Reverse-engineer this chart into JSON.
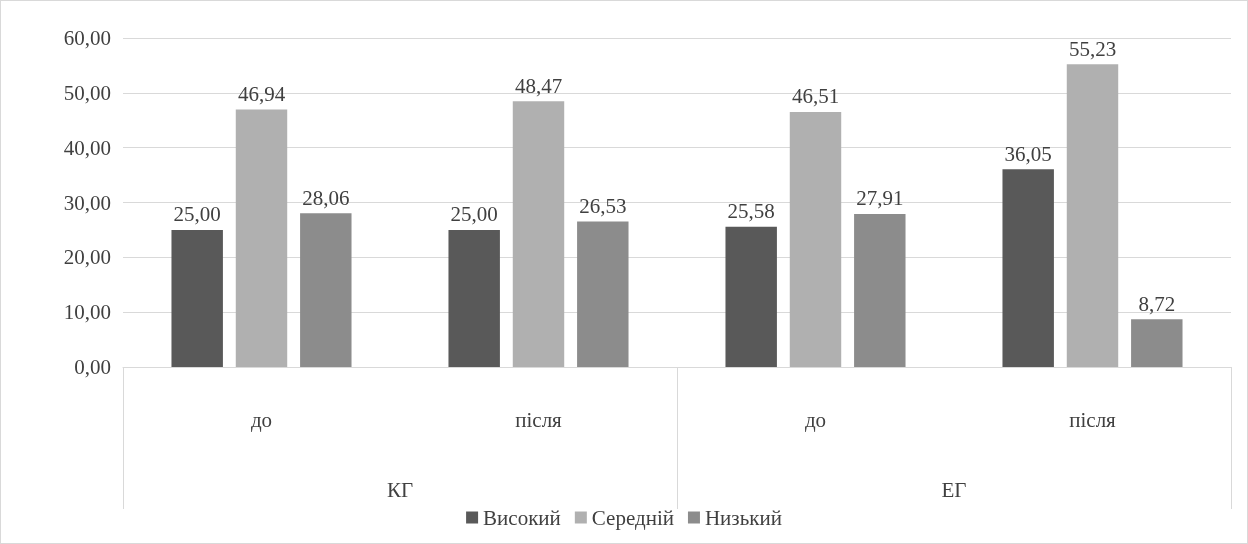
{
  "chart_data": {
    "type": "bar",
    "categories": [
      "до",
      "після",
      "до",
      "після"
    ],
    "annotations": [
      "КГ",
      "ЕГ"
    ],
    "series": [
      {
        "name": "Високий",
        "color": "#595959",
        "values": [
          25.0,
          25.0,
          25.58,
          36.05
        ],
        "value_labels": [
          "25,00",
          "25,00",
          "25,58",
          "36,05"
        ]
      },
      {
        "name": "Середній",
        "color": "#b0b0b0",
        "values": [
          46.94,
          48.47,
          46.51,
          55.23
        ],
        "value_labels": [
          "46,94",
          "48,47",
          "46,51",
          "55,23"
        ]
      },
      {
        "name": "Низький",
        "color": "#8c8c8c",
        "values": [
          28.06,
          26.53,
          27.91,
          8.72
        ],
        "value_labels": [
          "28,06",
          "26,53",
          "27,91",
          "8,72"
        ]
      }
    ],
    "ylim": [
      0,
      60
    ],
    "yticks": [
      {
        "value": 0,
        "label": "0,00"
      },
      {
        "value": 10,
        "label": "10,00"
      },
      {
        "value": 20,
        "label": "20,00"
      },
      {
        "value": 30,
        "label": "30,00"
      },
      {
        "value": 40,
        "label": "40,00"
      },
      {
        "value": 50,
        "label": "50,00"
      },
      {
        "value": 60,
        "label": "60,00"
      }
    ],
    "grid": "y",
    "legend": "bottom"
  }
}
